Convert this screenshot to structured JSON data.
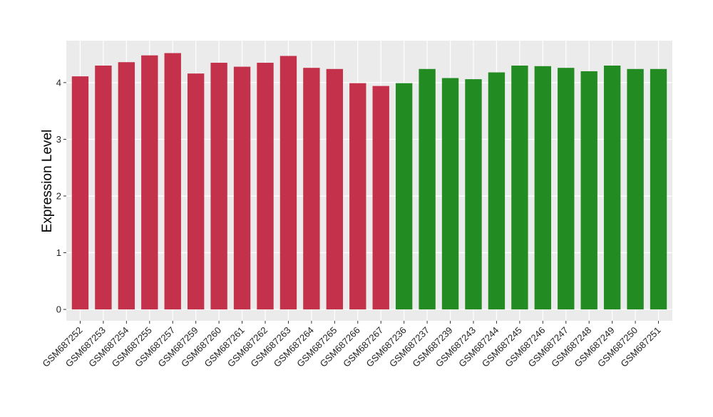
{
  "chart_data": {
    "type": "bar",
    "y_label": "Expression Level",
    "categories": [
      "GSM687252",
      "GSM687253",
      "GSM687254",
      "GSM687255",
      "GSM687257",
      "GSM687259",
      "GSM687260",
      "GSM687261",
      "GSM687262",
      "GSM687263",
      "GSM687264",
      "GSM687265",
      "GSM687266",
      "GSM687267",
      "GSM687236",
      "GSM687237",
      "GSM687239",
      "GSM687243",
      "GSM687244",
      "GSM687245",
      "GSM687246",
      "GSM687247",
      "GSM687248",
      "GSM687249",
      "GSM687250",
      "GSM687251"
    ],
    "values": [
      4.11,
      4.3,
      4.36,
      4.48,
      4.52,
      4.16,
      4.35,
      4.28,
      4.35,
      4.47,
      4.26,
      4.24,
      3.99,
      3.94,
      3.99,
      4.24,
      4.08,
      4.06,
      4.18,
      4.3,
      4.29,
      4.26,
      4.2,
      4.3,
      4.24,
      4.24
    ],
    "colors": [
      "#c3314a",
      "#c3314a",
      "#c3314a",
      "#c3314a",
      "#c3314a",
      "#c3314a",
      "#c3314a",
      "#c3314a",
      "#c3314a",
      "#c3314a",
      "#c3314a",
      "#c3314a",
      "#c3314a",
      "#c3314a",
      "#228b22",
      "#228b22",
      "#228b22",
      "#228b22",
      "#228b22",
      "#228b22",
      "#228b22",
      "#228b22",
      "#228b22",
      "#228b22",
      "#228b22",
      "#228b22"
    ],
    "ylim": [
      -0.2,
      4.74
    ],
    "yticks": [
      0,
      1,
      2,
      3,
      4
    ],
    "grid": true
  }
}
